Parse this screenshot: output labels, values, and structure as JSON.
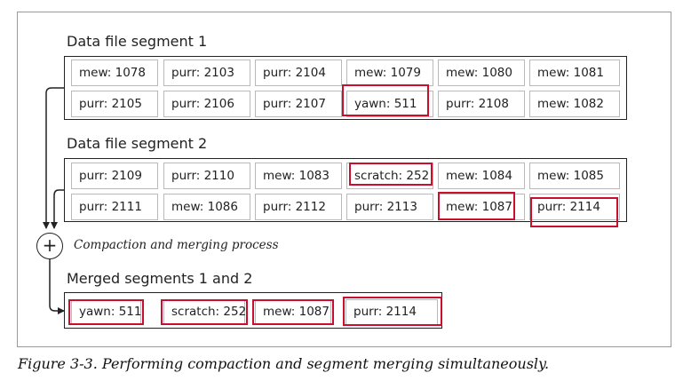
{
  "segment1": {
    "title": "Data file segment 1",
    "rows": [
      [
        "mew: 1078",
        "purr: 2103",
        "purr: 2104",
        "mew: 1079",
        "mew: 1080",
        "mew: 1081"
      ],
      [
        "purr: 2105",
        "purr: 2106",
        "purr: 2107",
        "yawn: 511",
        "purr: 2108",
        "mew: 1082"
      ]
    ]
  },
  "segment2": {
    "title": "Data file segment 2",
    "rows": [
      [
        "purr: 2109",
        "purr: 2110",
        "mew: 1083",
        "scratch: 252",
        "mew: 1084",
        "mew: 1085"
      ],
      [
        "purr: 2111",
        "mew: 1086",
        "purr: 2112",
        "purr: 2113",
        "mew: 1087",
        "purr: 2114"
      ]
    ]
  },
  "process": {
    "symbol": "+",
    "label": "Compaction and merging process"
  },
  "merged": {
    "title": "Merged segments 1 and 2",
    "cells": [
      "yawn: 511",
      "scratch: 252",
      "mew: 1087",
      "purr: 2114"
    ]
  },
  "caption": "Figure 3-3. Performing compaction and segment merging simultaneously.",
  "colors": {
    "highlight": "#c8102e",
    "line": "#222222",
    "cell_border": "#b9b9b9"
  }
}
